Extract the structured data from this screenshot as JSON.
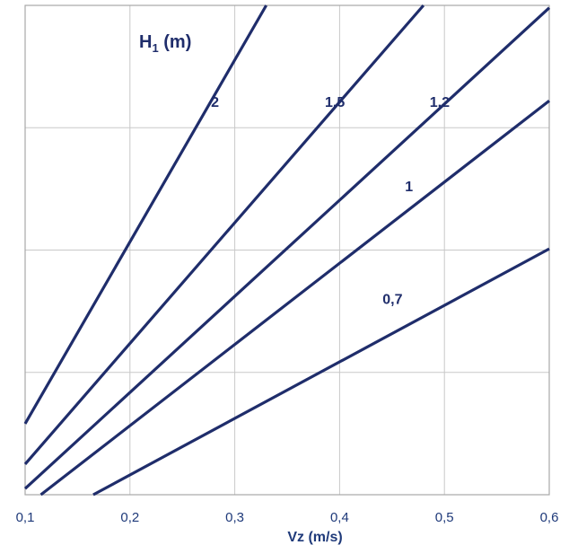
{
  "chart_data": {
    "type": "line",
    "xlabel": "Vz (m/s)",
    "legend_title": {
      "main": "H",
      "sub": "1",
      "unit": " (m)"
    },
    "x_ticks": [
      "0,1",
      "0,2",
      "0,3",
      "0,4",
      "0,5",
      "0,6"
    ],
    "xlim": [
      0.1,
      0.6
    ],
    "ylim": [
      0,
      4
    ],
    "grid": true,
    "colors": {
      "line": "#1f2d6b",
      "grid": "#c8c8c8",
      "frame": "#a8a8a8",
      "text": "#1f3a7a"
    },
    "series": [
      {
        "name": "2",
        "x": [
          0.1,
          0.33
        ],
        "y": [
          0.58,
          4.0
        ]
      },
      {
        "name": "1,5",
        "x": [
          0.1,
          0.48
        ],
        "y": [
          0.25,
          4.0
        ]
      },
      {
        "name": "1,2",
        "x": [
          0.1,
          0.6
        ],
        "y": [
          0.05,
          3.98
        ]
      },
      {
        "name": "1",
        "x": [
          0.115,
          0.6
        ],
        "y": [
          0.0,
          3.22
        ]
      },
      {
        "name": "0,7",
        "x": [
          0.165,
          0.6
        ],
        "y": [
          0.0,
          2.01
        ]
      }
    ],
    "label_anchor_x": [
      0.285,
      0.405,
      0.505,
      0.47,
      0.46
    ],
    "label_anchor_y": [
      3.17,
      3.17,
      3.17,
      2.48,
      1.56
    ]
  }
}
